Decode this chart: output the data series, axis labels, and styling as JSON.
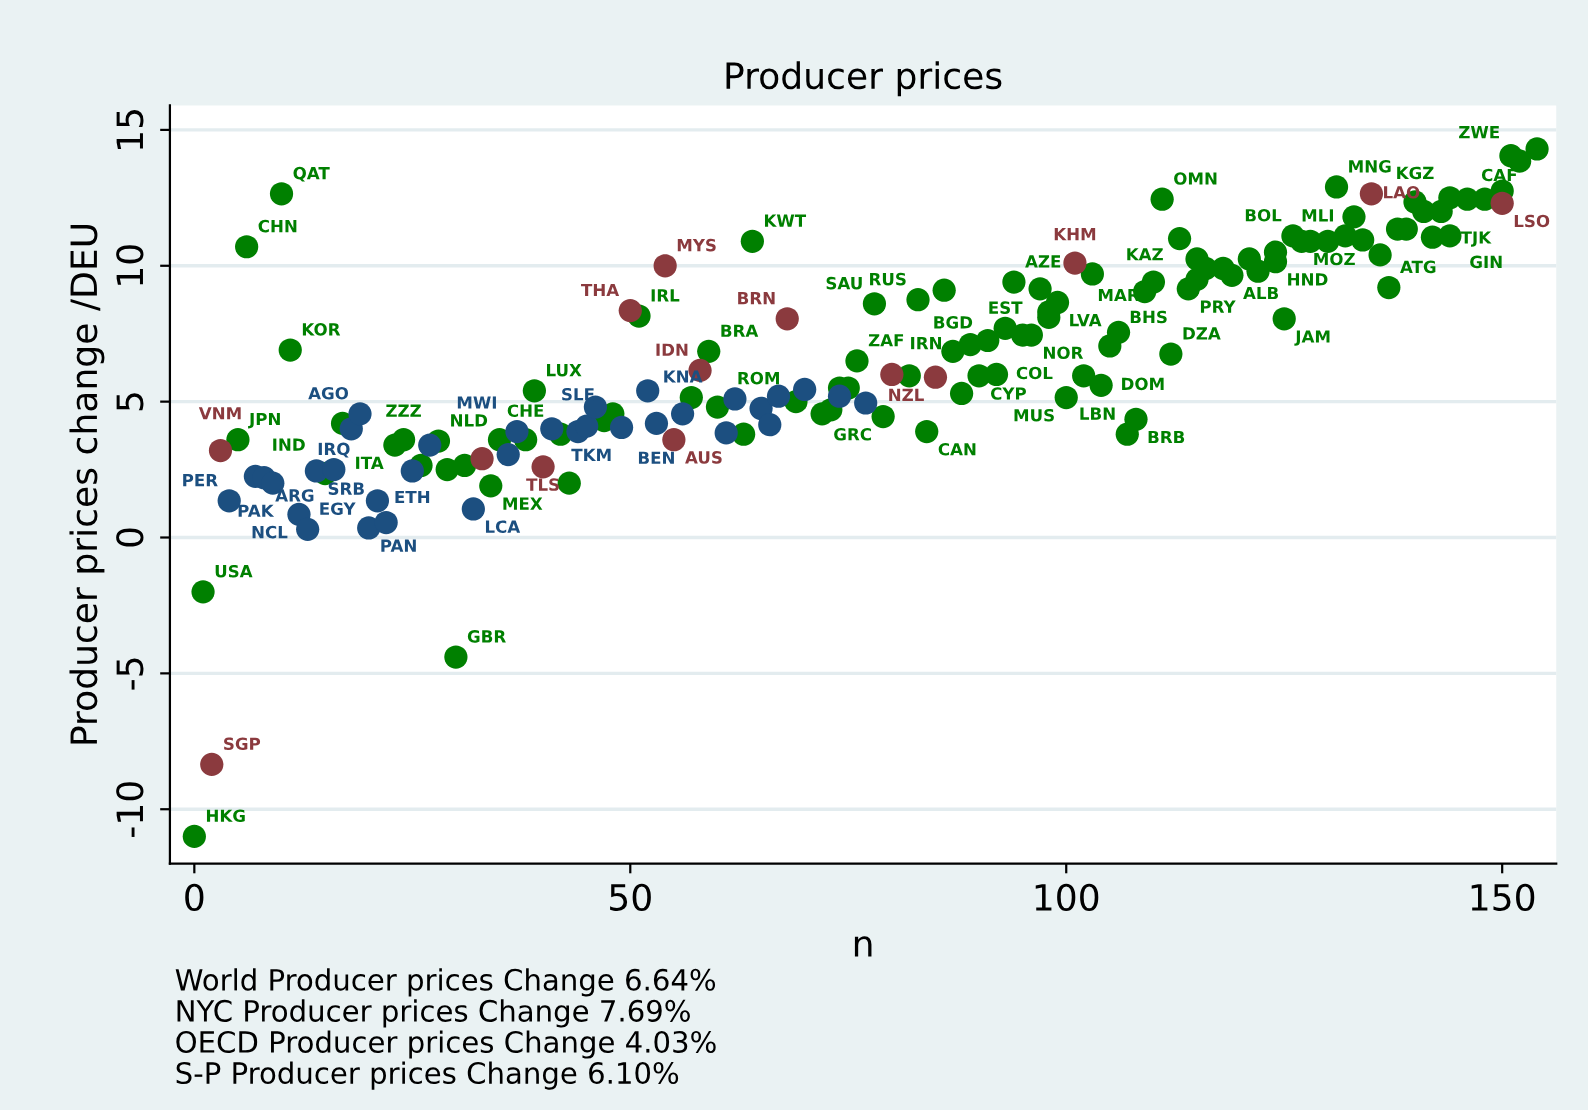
{
  "chart_data": {
    "type": "scatter",
    "title": "Producer prices",
    "xlabel": "n",
    "ylabel": "Producer prices change /DEU",
    "xlim": [
      -2.8,
      156.2
    ],
    "ylim": [
      -12,
      15.9
    ],
    "xticks": [
      0,
      50,
      100,
      150
    ],
    "yticks": [
      -10,
      -5,
      0,
      5,
      10,
      15
    ],
    "grid": "y",
    "marker": "circle",
    "series": [
      {
        "color": "#008000",
        "x": [
          0,
          1,
          5,
          6,
          10,
          11,
          15,
          17,
          23,
          24,
          26,
          28,
          29,
          30,
          31,
          34,
          35,
          38,
          39,
          42,
          43,
          47,
          48,
          51,
          57,
          59,
          60,
          63,
          64,
          69,
          72,
          73,
          74,
          75,
          76,
          78,
          79,
          82,
          83,
          84,
          86,
          87,
          88,
          89,
          90,
          91,
          92,
          93,
          94,
          95,
          96,
          97,
          98,
          98,
          99,
          100,
          102,
          103,
          104,
          105,
          106,
          107,
          108,
          109,
          110,
          111,
          112,
          113,
          114,
          115,
          115,
          116,
          118,
          119,
          121,
          122,
          124,
          124,
          125,
          126,
          127,
          128,
          130,
          131,
          132,
          133,
          134,
          136,
          137,
          138,
          139,
          140,
          141,
          142,
          143,
          144,
          144,
          146,
          148,
          150,
          151,
          152,
          154
        ],
        "values": [
          -11.0,
          -2.0,
          3.6,
          10.7,
          12.65,
          6.9,
          2.35,
          4.2,
          3.4,
          3.6,
          2.65,
          3.55,
          2.5,
          -4.4,
          2.65,
          1.9,
          3.6,
          3.6,
          5.4,
          3.8,
          2.0,
          4.3,
          4.55,
          8.15,
          5.15,
          6.85,
          4.8,
          3.8,
          10.9,
          5.0,
          4.55,
          4.7,
          5.5,
          5.5,
          6.5,
          8.6,
          4.45,
          5.95,
          8.75,
          3.9,
          9.1,
          6.85,
          5.3,
          7.1,
          5.95,
          7.25,
          6.0,
          7.7,
          9.4,
          7.45,
          7.45,
          9.15,
          8.3,
          8.1,
          8.65,
          5.15,
          5.95,
          9.7,
          5.6,
          7.05,
          7.55,
          3.8,
          4.35,
          9.05,
          9.4,
          12.45,
          6.75,
          11.0,
          9.15,
          9.5,
          10.25,
          9.9,
          9.9,
          9.65,
          10.25,
          9.8,
          10.5,
          10.15,
          8.05,
          11.1,
          10.9,
          10.9,
          10.9,
          12.9,
          11.1,
          11.8,
          10.95,
          10.4,
          9.2,
          11.35,
          11.35,
          12.35,
          12.0,
          11.05,
          12.0,
          11.1,
          12.5,
          12.45,
          12.45,
          12.75,
          14.05,
          13.85,
          14.3
        ],
        "value_labels": [
          "HKG",
          "USA",
          "JPN",
          "CHN",
          "QAT",
          "KOR",
          "IND",
          null,
          "ITA",
          "ZZZ",
          null,
          "NLD",
          null,
          "GBR",
          null,
          "MEX",
          null,
          "CHE",
          "LUX",
          null,
          null,
          null,
          null,
          "IRL",
          null,
          "BRA",
          "ROM",
          null,
          "KWT",
          null,
          null,
          null,
          null,
          null,
          "ZAF",
          "SAU",
          "GRC",
          null,
          "RUS",
          "CAN",
          null,
          "BGD",
          null,
          "IRN",
          "CYP",
          null,
          "COL",
          "EST",
          "AZE",
          null,
          "NOR",
          null,
          null,
          null,
          "LVA",
          "MUS",
          null,
          null,
          "DOM",
          "BHS",
          "MAR",
          "LBN",
          "BRB",
          "KAZ",
          null,
          "OMN",
          "DZA",
          null,
          "PRY",
          null,
          null,
          null,
          null,
          "ALB",
          null,
          null,
          null,
          "HND",
          "JAM",
          "BOL",
          "MOZ",
          null,
          null,
          "MNG",
          null,
          "MLI",
          null,
          null,
          "ATG",
          null,
          null,
          "KGZ",
          null,
          null,
          "TJK",
          "GIN",
          null,
          null,
          null,
          null,
          null,
          "ZWE",
          "CAF"
        ]
      },
      {
        "color": "#1c4f80",
        "x": [
          4,
          7,
          8,
          9,
          12,
          13,
          14,
          16,
          18,
          19,
          20,
          21,
          22,
          25,
          27,
          32,
          36,
          37,
          41,
          44,
          45,
          46,
          49,
          52,
          53,
          56,
          61,
          62,
          65,
          66,
          67,
          70,
          74,
          77
        ],
        "values": [
          1.35,
          2.25,
          2.2,
          2.0,
          0.85,
          0.3,
          2.45,
          2.5,
          4.0,
          4.55,
          0.35,
          1.35,
          0.55,
          2.45,
          3.4,
          1.05,
          3.05,
          3.9,
          4.0,
          3.9,
          4.1,
          4.8,
          4.05,
          5.4,
          4.2,
          4.55,
          3.85,
          5.1,
          4.75,
          4.15,
          5.2,
          5.45,
          5.2,
          4.95
        ],
        "value_labels": [
          "PER",
          "PAK",
          "ARG",
          null,
          "NCL",
          "EGY",
          "SRB",
          "IRQ",
          null,
          "AGO",
          "PAN",
          null,
          null,
          "ETH",
          null,
          "LCA",
          null,
          "MWI",
          "TKM",
          "SLE",
          null,
          null,
          null,
          null,
          "BEN",
          "KNA",
          null,
          null,
          null,
          null,
          null,
          null,
          null,
          null
        ]
      },
      {
        "color": "#8b3a3e",
        "x": [
          2,
          3,
          33,
          40,
          50,
          54,
          55,
          58,
          68,
          80,
          85,
          101,
          135,
          150
        ],
        "values": [
          -8.35,
          3.2,
          2.9,
          2.6,
          8.35,
          10.0,
          3.6,
          6.15,
          8.05,
          6.0,
          5.9,
          10.1,
          12.65,
          12.3
        ],
        "value_labels": [
          "SGP",
          "VNM",
          null,
          "TLS",
          "THA",
          "MYS",
          "AUS",
          "IDN",
          "BRN",
          null,
          "NZL",
          "KHM",
          "LAO",
          "LSO"
        ]
      }
    ],
    "annotations": [
      "World Producer prices Change 6.64%",
      "NYC Producer prices Change 7.69%",
      "OECD Producer prices Change 4.03%",
      "S-P Producer prices Change 6.10%"
    ]
  }
}
